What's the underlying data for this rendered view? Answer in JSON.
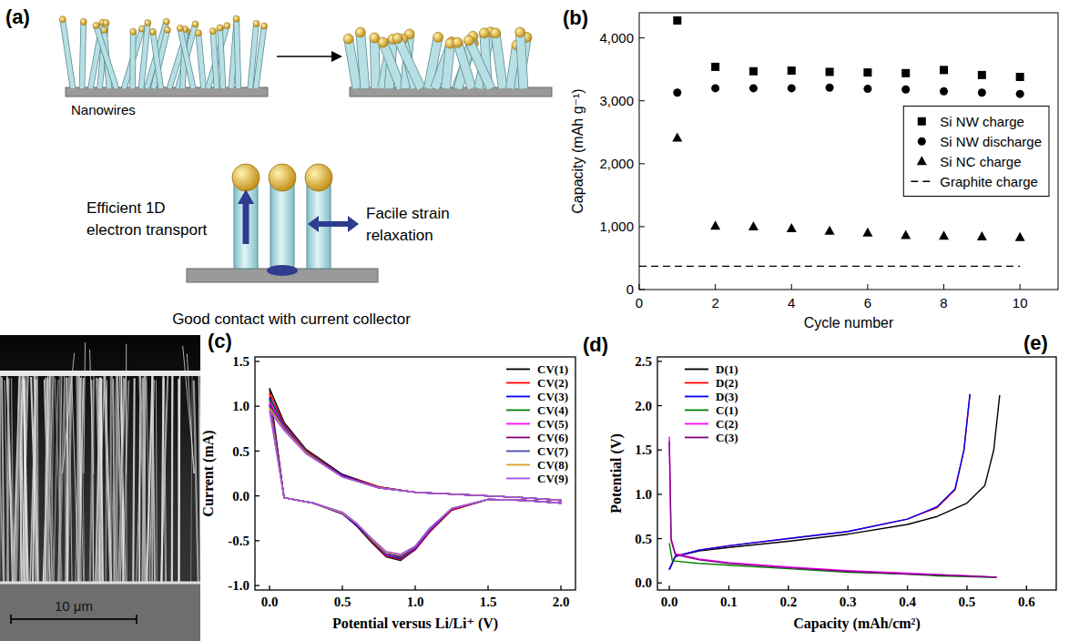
{
  "diagram": {
    "label": "(a)",
    "nanowires_label": "Nanowires",
    "transport_label": "Efficient 1D electron transport",
    "strain_label": "Facile strain relaxation",
    "contact_label": "Good contact with current collector"
  },
  "image": {
    "label": "(c)",
    "scale_bar": "10 μm"
  },
  "chart_data": [
    {
      "type": "scatter",
      "title": "(b)",
      "x_label": "Cycle number",
      "y_label": "Capacity (mAh g⁻¹)",
      "xlim": [
        0,
        11
      ],
      "ylim": [
        0,
        4400
      ],
      "xticks": [
        0,
        2,
        4,
        6,
        8,
        10
      ],
      "yticks": [
        0,
        {
          "value": 1000,
          "label": "1,000"
        },
        {
          "value": 2000,
          "label": "2,000"
        },
        {
          "value": 3000,
          "label": "3,000"
        },
        {
          "value": 4000,
          "label": "4,000"
        }
      ],
      "legend": "right",
      "series": [
        {
          "name": "Si NW charge",
          "color": "#000000",
          "marker": "square",
          "x": [
            1,
            2,
            3,
            4,
            5,
            6,
            7,
            8,
            9,
            10
          ],
          "values": [
            4277,
            3540,
            3470,
            3480,
            3460,
            3450,
            3440,
            3490,
            3410,
            3380
          ]
        },
        {
          "name": "Si NW discharge",
          "color": "#000000",
          "marker": "circle",
          "x": [
            1,
            2,
            3,
            4,
            5,
            6,
            7,
            8,
            9,
            10
          ],
          "values": [
            3130,
            3200,
            3200,
            3200,
            3210,
            3190,
            3180,
            3150,
            3130,
            3110
          ]
        },
        {
          "name": "Si NC charge",
          "color": "#000000",
          "marker": "triangle",
          "x": [
            1,
            2,
            3,
            4,
            5,
            6,
            7,
            8,
            9,
            10
          ],
          "values": [
            2410,
            1010,
            1000,
            970,
            930,
            900,
            860,
            850,
            840,
            830
          ]
        },
        {
          "name": "Graphite charge",
          "color": "#000000",
          "type": "line",
          "line_style": "dashed",
          "x": [
            0,
            10
          ],
          "values": [
            372,
            372
          ]
        }
      ]
    },
    {
      "type": "line",
      "title": "(d)",
      "x_label": "Potential versus Li/Li⁺ (V)",
      "y_label": "Current (mA)",
      "xlim": [
        -0.1,
        2.1
      ],
      "ylim": [
        -1.05,
        1.55
      ],
      "xticks": [
        {
          "value": 0,
          "label": "0.0"
        },
        0.5,
        {
          "value": 1,
          "label": "1.0"
        },
        1.5,
        {
          "value": 2,
          "label": "2.0"
        }
      ],
      "yticks": [
        {
          "value": -1,
          "label": "-1.0"
        },
        -0.5,
        {
          "value": 0,
          "label": "0.0"
        },
        0.5,
        {
          "value": 1,
          "label": "1.0"
        },
        1.5
      ],
      "legend": "upper-right",
      "series": [
        {
          "name": "CV(1)",
          "color": "#000000",
          "x": [
            0.0,
            0.1,
            0.25,
            0.5,
            0.75,
            1.0,
            1.25,
            1.5,
            1.75,
            2.0,
            2.0,
            1.75,
            1.5,
            1.25,
            1.1,
            1.0,
            0.9,
            0.8,
            0.7,
            0.6,
            0.5,
            0.3,
            0.1,
            0.0
          ],
          "values": [
            1.2,
            0.82,
            0.52,
            0.24,
            0.1,
            0.04,
            0.02,
            0.0,
            -0.02,
            -0.05,
            -0.08,
            -0.05,
            -0.04,
            -0.16,
            -0.4,
            -0.6,
            -0.72,
            -0.68,
            -0.52,
            -0.34,
            -0.2,
            -0.08,
            -0.02,
            1.2
          ]
        },
        {
          "name": "CV(2)",
          "color": "#ff0000",
          "x": [
            0.0,
            0.1,
            0.25,
            0.5,
            0.75,
            1.0,
            1.25,
            1.5,
            1.75,
            2.0,
            2.0,
            1.75,
            1.5,
            1.25,
            1.1,
            1.0,
            0.9,
            0.8,
            0.7,
            0.6,
            0.5,
            0.3,
            0.1,
            0.0
          ],
          "values": [
            1.15,
            0.8,
            0.51,
            0.23,
            0.1,
            0.04,
            0.02,
            0.0,
            -0.02,
            -0.05,
            -0.08,
            -0.05,
            -0.04,
            -0.16,
            -0.4,
            -0.6,
            -0.71,
            -0.67,
            -0.51,
            -0.33,
            -0.2,
            -0.08,
            -0.02,
            1.15
          ]
        },
        {
          "name": "CV(3)",
          "color": "#0000ff",
          "x": [
            0.0,
            0.1,
            0.25,
            0.5,
            0.75,
            1.0,
            1.25,
            1.5,
            1.75,
            2.0,
            2.0,
            1.75,
            1.5,
            1.25,
            1.1,
            1.0,
            0.9,
            0.8,
            0.7,
            0.6,
            0.5,
            0.3,
            0.1,
            0.0
          ],
          "values": [
            1.1,
            0.79,
            0.5,
            0.23,
            0.09,
            0.04,
            0.02,
            0.0,
            -0.02,
            -0.05,
            -0.08,
            -0.05,
            -0.04,
            -0.15,
            -0.39,
            -0.59,
            -0.7,
            -0.66,
            -0.5,
            -0.33,
            -0.2,
            -0.08,
            -0.02,
            1.1
          ]
        },
        {
          "name": "CV(4)",
          "color": "#008000",
          "x": [
            0.0,
            0.1,
            0.25,
            0.5,
            0.75,
            1.0,
            1.25,
            1.5,
            1.75,
            2.0,
            2.0,
            1.75,
            1.5,
            1.25,
            1.1,
            1.0,
            0.9,
            0.8,
            0.7,
            0.6,
            0.5,
            0.3,
            0.1,
            0.0
          ],
          "values": [
            1.08,
            0.78,
            0.5,
            0.22,
            0.09,
            0.04,
            0.02,
            0.0,
            -0.02,
            -0.05,
            -0.08,
            -0.05,
            -0.04,
            -0.15,
            -0.38,
            -0.58,
            -0.69,
            -0.65,
            -0.5,
            -0.32,
            -0.19,
            -0.08,
            -0.02,
            1.08
          ]
        },
        {
          "name": "CV(5)",
          "color": "#ff00ff",
          "x": [
            0.0,
            0.1,
            0.25,
            0.5,
            0.75,
            1.0,
            1.25,
            1.5,
            1.75,
            2.0,
            2.0,
            1.75,
            1.5,
            1.25,
            1.1,
            1.0,
            0.9,
            0.8,
            0.7,
            0.6,
            0.5,
            0.3,
            0.1,
            0.0
          ],
          "values": [
            1.05,
            0.77,
            0.49,
            0.22,
            0.09,
            0.04,
            0.02,
            0.0,
            -0.02,
            -0.05,
            -0.08,
            -0.05,
            -0.04,
            -0.15,
            -0.38,
            -0.58,
            -0.68,
            -0.65,
            -0.49,
            -0.32,
            -0.19,
            -0.08,
            -0.02,
            1.05
          ]
        },
        {
          "name": "CV(6)",
          "color": "#800080",
          "x": [
            0.0,
            0.1,
            0.25,
            0.5,
            0.75,
            1.0,
            1.25,
            1.5,
            1.75,
            2.0,
            2.0,
            1.75,
            1.5,
            1.25,
            1.1,
            1.0,
            0.9,
            0.8,
            0.7,
            0.6,
            0.5,
            0.3,
            0.1,
            0.0
          ],
          "values": [
            1.02,
            0.76,
            0.49,
            0.22,
            0.09,
            0.04,
            0.02,
            0.0,
            -0.02,
            -0.05,
            -0.08,
            -0.05,
            -0.04,
            -0.15,
            -0.37,
            -0.57,
            -0.68,
            -0.64,
            -0.49,
            -0.32,
            -0.19,
            -0.08,
            -0.02,
            1.02
          ]
        },
        {
          "name": "CV(7)",
          "color": "#4b4bb0",
          "x": [
            0.0,
            0.1,
            0.25,
            0.5,
            0.75,
            1.0,
            1.25,
            1.5,
            1.75,
            2.0,
            2.0,
            1.75,
            1.5,
            1.25,
            1.1,
            1.0,
            0.9,
            0.8,
            0.7,
            0.6,
            0.5,
            0.3,
            0.1,
            0.0
          ],
          "values": [
            1.0,
            0.75,
            0.48,
            0.21,
            0.09,
            0.04,
            0.02,
            0.0,
            -0.02,
            -0.05,
            -0.08,
            -0.05,
            -0.04,
            -0.14,
            -0.37,
            -0.57,
            -0.67,
            -0.64,
            -0.48,
            -0.31,
            -0.19,
            -0.08,
            -0.02,
            1.0
          ]
        },
        {
          "name": "CV(8)",
          "color": "#d4a020",
          "x": [
            0.0,
            0.1,
            0.25,
            0.5,
            0.75,
            1.0,
            1.25,
            1.5,
            1.75,
            2.0,
            2.0,
            1.75,
            1.5,
            1.25,
            1.1,
            1.0,
            0.9,
            0.8,
            0.7,
            0.6,
            0.5,
            0.3,
            0.1,
            0.0
          ],
          "values": [
            0.98,
            0.74,
            0.48,
            0.21,
            0.09,
            0.04,
            0.02,
            0.0,
            -0.02,
            -0.05,
            -0.08,
            -0.05,
            -0.04,
            -0.14,
            -0.36,
            -0.56,
            -0.66,
            -0.63,
            -0.48,
            -0.31,
            -0.19,
            -0.08,
            -0.02,
            0.98
          ]
        },
        {
          "name": "CV(9)",
          "color": "#a050f0",
          "x": [
            0.0,
            0.1,
            0.25,
            0.5,
            0.75,
            1.0,
            1.25,
            1.5,
            1.75,
            2.0,
            2.0,
            1.75,
            1.5,
            1.25,
            1.1,
            1.0,
            0.9,
            0.8,
            0.7,
            0.6,
            0.5,
            0.3,
            0.1,
            0.0
          ],
          "values": [
            0.95,
            0.73,
            0.47,
            0.21,
            0.09,
            0.04,
            0.02,
            0.0,
            -0.02,
            -0.05,
            -0.08,
            -0.05,
            -0.04,
            -0.14,
            -0.36,
            -0.56,
            -0.65,
            -0.62,
            -0.47,
            -0.31,
            -0.18,
            -0.08,
            -0.02,
            0.95
          ]
        }
      ]
    },
    {
      "type": "line",
      "title": "(e)",
      "x_label": "Capacity (mAh/cm²)",
      "y_label": "Potential (V)",
      "xlim": [
        -0.02,
        0.65
      ],
      "ylim": [
        -0.08,
        2.55
      ],
      "xticks": [
        {
          "value": 0,
          "label": "0.0"
        },
        0.1,
        0.2,
        0.3,
        0.4,
        0.5,
        0.6
      ],
      "yticks": [
        {
          "value": 0,
          "label": "0.0"
        },
        0.5,
        {
          "value": 1,
          "label": "1.0"
        },
        1.5,
        {
          "value": 2,
          "label": "2.0"
        },
        2.5
      ],
      "legend": "upper-left",
      "series": [
        {
          "name": "D(1)",
          "color": "#000000",
          "x": [
            0,
            0.01,
            0.05,
            0.1,
            0.2,
            0.3,
            0.4,
            0.45,
            0.5,
            0.53,
            0.545,
            0.555
          ],
          "values": [
            0.15,
            0.3,
            0.36,
            0.4,
            0.47,
            0.55,
            0.66,
            0.75,
            0.9,
            1.1,
            1.5,
            2.12
          ]
        },
        {
          "name": "D(2)",
          "color": "#ff0000",
          "x": [
            0,
            0.01,
            0.05,
            0.1,
            0.2,
            0.3,
            0.4,
            0.45,
            0.48,
            0.495,
            0.505
          ],
          "values": [
            0.15,
            0.3,
            0.37,
            0.42,
            0.5,
            0.58,
            0.72,
            0.85,
            1.05,
            1.5,
            2.13
          ]
        },
        {
          "name": "D(3)",
          "color": "#0000ff",
          "x": [
            0,
            0.01,
            0.05,
            0.1,
            0.2,
            0.3,
            0.4,
            0.45,
            0.48,
            0.495,
            0.505
          ],
          "values": [
            0.15,
            0.3,
            0.37,
            0.42,
            0.5,
            0.58,
            0.72,
            0.86,
            1.06,
            1.5,
            2.13
          ]
        },
        {
          "name": "C(1)",
          "color": "#008000",
          "x": [
            0,
            0.005,
            0.05,
            0.1,
            0.2,
            0.3,
            0.4,
            0.45,
            0.5,
            0.55
          ],
          "values": [
            0.45,
            0.25,
            0.22,
            0.2,
            0.16,
            0.12,
            0.1,
            0.08,
            0.07,
            0.06
          ]
        },
        {
          "name": "C(2)",
          "color": "#ff00ff",
          "x": [
            0,
            0.003,
            0.01,
            0.05,
            0.1,
            0.2,
            0.3,
            0.4,
            0.5,
            0.55
          ],
          "values": [
            1.65,
            0.5,
            0.33,
            0.27,
            0.23,
            0.18,
            0.14,
            0.11,
            0.08,
            0.065
          ]
        },
        {
          "name": "C(3)",
          "color": "#800080",
          "x": [
            0,
            0.003,
            0.01,
            0.05,
            0.1,
            0.2,
            0.3,
            0.4,
            0.5,
            0.55
          ],
          "values": [
            1.6,
            0.48,
            0.32,
            0.26,
            0.22,
            0.17,
            0.13,
            0.1,
            0.08,
            0.065
          ]
        }
      ]
    }
  ]
}
